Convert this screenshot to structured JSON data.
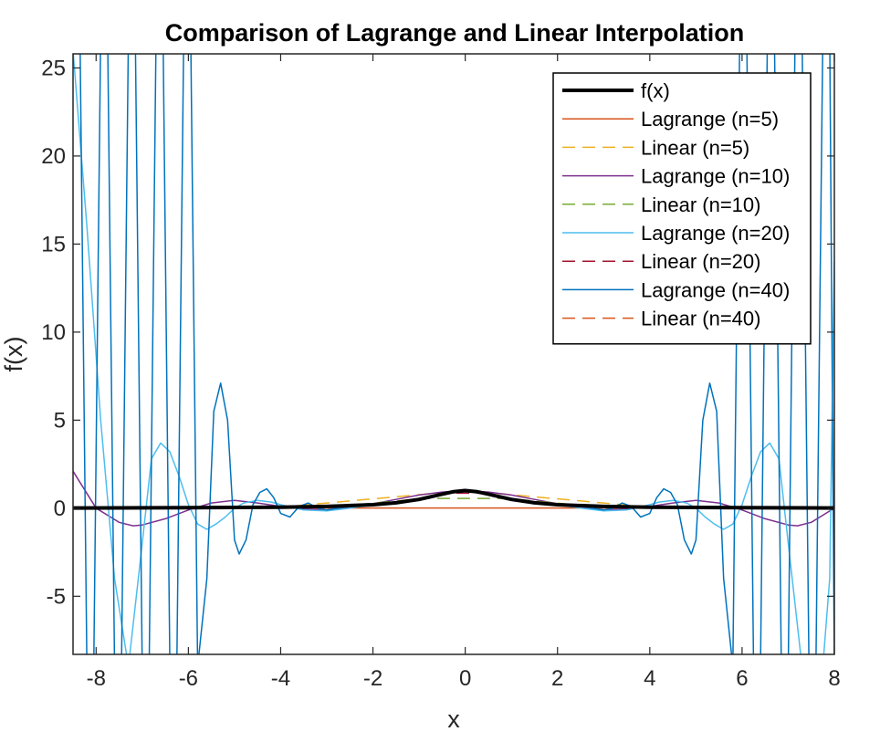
{
  "chart_data": {
    "type": "line",
    "title": "Comparison of Lagrange and Linear Interpolation",
    "xlabel": "x",
    "ylabel": "f(x)",
    "xlim": [
      -8.5,
      8
    ],
    "ylim": [
      -8.3,
      25.8
    ],
    "xticks": [
      -8,
      -6,
      -4,
      -2,
      0,
      2,
      4,
      6,
      8
    ],
    "xtick_labels": [
      "-8",
      "-6",
      "-4",
      "-2",
      "0",
      "2",
      "4",
      "6",
      "8"
    ],
    "yticks": [
      -5,
      0,
      5,
      10,
      15,
      20,
      25
    ],
    "ytick_labels": [
      "-5",
      "0",
      "5",
      "10",
      "15",
      "20",
      "25"
    ],
    "grid": false,
    "legend_position": "top-right",
    "series": [
      {
        "name": "f(x)",
        "color": "#000000",
        "style": "solid",
        "width": 4,
        "x": [
          -8.5,
          -6,
          -4,
          -3,
          -2,
          -1.5,
          -1,
          -0.5,
          -0.25,
          0,
          0.25,
          0.5,
          1,
          1.5,
          2,
          3,
          4,
          6,
          8
        ],
        "y": [
          0.014,
          0.027,
          0.059,
          0.1,
          0.2,
          0.31,
          0.5,
          0.8,
          0.94,
          1.0,
          0.94,
          0.8,
          0.5,
          0.31,
          0.2,
          0.1,
          0.059,
          0.027,
          0.015
        ]
      },
      {
        "name": "Lagrange (n=5)",
        "color": "#D95319",
        "style": "solid",
        "width": 1.5,
        "x": [
          -8.5,
          0,
          8
        ],
        "y": [
          0.015,
          0.015,
          0.015
        ]
      },
      {
        "name": "Linear (n=5)",
        "color": "#EDB120",
        "style": "dashed",
        "width": 1.5,
        "x": [
          -8,
          -4,
          0,
          4,
          8
        ],
        "y": [
          0.015,
          0.059,
          1.0,
          0.059,
          0.015
        ]
      },
      {
        "name": "Lagrange (n=10)",
        "color": "#7E2F8E",
        "style": "solid",
        "width": 1.5,
        "x": [
          -8.5,
          -8,
          -7.5,
          -7.2,
          -7,
          -6.5,
          -6,
          -5.5,
          -5,
          -4.5,
          -4,
          -3.5,
          -3,
          -2.5,
          -2,
          -1.5,
          -1,
          -0.5,
          0,
          0.5,
          1,
          1.5,
          2,
          2.5,
          3,
          3.5,
          4,
          4.5,
          5,
          5.5,
          6,
          6.5,
          7,
          7.2,
          7.5,
          8
        ],
        "y": [
          2.1,
          0.0,
          -0.8,
          -1.0,
          -0.95,
          -0.6,
          -0.1,
          0.3,
          0.45,
          0.3,
          0.1,
          -0.05,
          -0.1,
          0.05,
          0.25,
          0.5,
          0.75,
          0.92,
          1.0,
          0.92,
          0.75,
          0.5,
          0.25,
          0.05,
          -0.1,
          -0.05,
          0.1,
          0.3,
          0.45,
          0.3,
          -0.1,
          -0.6,
          -0.95,
          -1.0,
          -0.8,
          0.0
        ]
      },
      {
        "name": "Linear (n=10)",
        "color": "#77AC30",
        "style": "dashed",
        "width": 1.5,
        "x": [
          -8,
          -6.22,
          -4.44,
          -2.67,
          -0.89,
          0.89,
          2.67,
          4.44,
          6.22,
          8
        ],
        "y": [
          0.015,
          0.025,
          0.048,
          0.123,
          0.558,
          0.558,
          0.123,
          0.048,
          0.025,
          0.015
        ]
      },
      {
        "name": "Lagrange (n=20)",
        "color": "#4DBEEE",
        "style": "solid",
        "width": 1.5,
        "x": [
          -8.5,
          -8.2,
          -7.9,
          -7.6,
          -7.3,
          -7.0,
          -6.8,
          -6.6,
          -6.4,
          -6.2,
          -6.0,
          -5.8,
          -5.6,
          -5.4,
          -5.2,
          -5.0,
          -4.8,
          -4.5,
          -4.2,
          -4.0,
          -3.5,
          -3.0,
          -2.5,
          -2.0,
          -1.5,
          -1.0,
          -0.5,
          0,
          0.5,
          1.0,
          1.5,
          2.0,
          2.5,
          3.0,
          3.5,
          4.0,
          4.2,
          4.5,
          4.8,
          5.0,
          5.2,
          5.4,
          5.6,
          5.8,
          6.0,
          6.2,
          6.4,
          6.6,
          6.8,
          7.0,
          7.3,
          7.6,
          7.9,
          8.0
        ],
        "y": [
          26,
          16,
          5,
          -4,
          -9,
          -2,
          2.8,
          3.7,
          3.2,
          1.8,
          0.2,
          -0.9,
          -1.2,
          -0.9,
          -0.5,
          0.0,
          0.3,
          0.45,
          0.35,
          0.2,
          -0.1,
          -0.15,
          0.0,
          0.2,
          0.32,
          0.5,
          0.8,
          1.0,
          0.8,
          0.5,
          0.32,
          0.2,
          0.0,
          -0.15,
          -0.1,
          0.2,
          0.35,
          0.45,
          0.3,
          0.0,
          -0.5,
          -0.9,
          -1.2,
          -0.9,
          0.2,
          1.8,
          3.2,
          3.7,
          2.8,
          -2,
          -9,
          -14,
          -4,
          14
        ]
      },
      {
        "name": "Linear (n=20)",
        "color": "#A2142F",
        "style": "dashed",
        "width": 1.5,
        "x": [
          -8,
          -7.16,
          -6.32,
          -5.47,
          -4.63,
          -3.79,
          -2.95,
          -2.11,
          -1.26,
          -0.42,
          0.42,
          1.26,
          2.11,
          2.95,
          3.79,
          4.63,
          5.47,
          6.32,
          7.16,
          8
        ],
        "y": [
          0.015,
          0.019,
          0.024,
          0.032,
          0.045,
          0.065,
          0.103,
          0.183,
          0.386,
          0.85,
          0.85,
          0.386,
          0.183,
          0.103,
          0.065,
          0.045,
          0.032,
          0.024,
          0.019,
          0.015
        ]
      },
      {
        "name": "Lagrange (n=40)",
        "color": "#0072BD",
        "style": "solid",
        "width": 1.5,
        "x": [
          -8.5,
          -8.35,
          -8.2,
          -8.05,
          -7.9,
          -7.75,
          -7.6,
          -7.45,
          -7.3,
          -7.15,
          -7.0,
          -6.85,
          -6.7,
          -6.55,
          -6.4,
          -6.25,
          -6.1,
          -5.95,
          -5.8,
          -5.6,
          -5.45,
          -5.3,
          -5.15,
          -5.0,
          -4.9,
          -4.75,
          -4.6,
          -4.45,
          -4.3,
          -4.15,
          -4.0,
          -3.8,
          -3.6,
          -3.4,
          -3.2,
          -3.0,
          -2.5,
          -2.0,
          -1.5,
          -1.0,
          -0.5,
          -0.25,
          0,
          0.25,
          0.5,
          1.0,
          1.5,
          2.0,
          2.5,
          3.0,
          3.2,
          3.4,
          3.6,
          3.8,
          4.0,
          4.15,
          4.3,
          4.45,
          4.6,
          4.75,
          4.9,
          5.0,
          5.15,
          5.3,
          5.45,
          5.6,
          5.8,
          5.95,
          6.1,
          6.25,
          6.4,
          6.55,
          6.7,
          6.85,
          7.0,
          7.15,
          7.3,
          7.45,
          7.6,
          7.75,
          7.9,
          8.0
        ],
        "y": [
          27,
          27,
          -9,
          -9,
          27,
          27,
          -9,
          -9,
          27,
          27,
          -9,
          -9,
          27,
          27,
          -9,
          -9,
          27,
          27,
          -9,
          -4,
          5.5,
          7.1,
          5.0,
          -1.8,
          -2.6,
          -1.8,
          0.2,
          0.9,
          1.1,
          0.6,
          -0.3,
          -0.5,
          0.1,
          0.3,
          0.0,
          -0.1,
          0.12,
          0.2,
          0.31,
          0.5,
          0.8,
          0.94,
          1.0,
          0.94,
          0.8,
          0.5,
          0.31,
          0.2,
          0.12,
          -0.1,
          0.0,
          0.3,
          0.1,
          -0.5,
          -0.3,
          0.6,
          1.1,
          0.9,
          0.2,
          -1.8,
          -2.6,
          -1.8,
          5.0,
          7.1,
          5.5,
          -4,
          -9,
          27,
          27,
          -9,
          -9,
          27,
          27,
          -9,
          -9,
          27,
          27,
          -9,
          -9,
          27,
          27,
          -9
        ]
      },
      {
        "name": "Linear (n=40)",
        "color": "#D95319",
        "style": "dashed",
        "width": 1.5,
        "x": [
          -8,
          -6,
          -4,
          -2,
          -1,
          -0.41,
          0,
          0.41,
          1,
          2,
          4,
          6,
          8
        ],
        "y": [
          0.015,
          0.027,
          0.059,
          0.2,
          0.5,
          0.856,
          0.95,
          0.856,
          0.5,
          0.2,
          0.059,
          0.027,
          0.015
        ]
      }
    ]
  }
}
